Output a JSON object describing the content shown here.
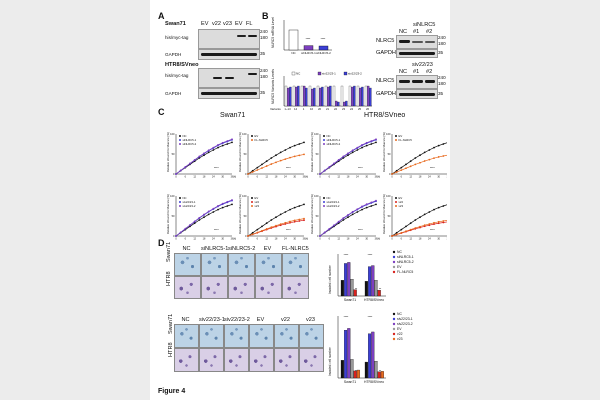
{
  "figure_label": "Figure 4",
  "panels": {
    "A": "A",
    "B": "B",
    "C": "C",
    "D": "D"
  },
  "panel_a": {
    "cell_line_1": "Swan71",
    "cell_line_2": "HTR8/SVneo",
    "lanes": [
      "EV",
      "v22",
      "v23",
      "EV",
      "FL"
    ],
    "row_labels": [
      "his/myc-tag",
      "GAPDH"
    ],
    "mw": [
      "240",
      "180",
      "35"
    ]
  },
  "panel_b": {
    "sinlrc5_title": "siNLRC5",
    "siv_title": "siv22/23",
    "lanes": [
      "NC",
      "#1",
      "#2"
    ],
    "row_labels": [
      "NLRC5",
      "GAPDH"
    ],
    "mw": [
      "240",
      "180",
      "35"
    ],
    "bar_ylabel": "NLRC5 mRNA Level",
    "bar_categories": [
      "NC",
      "siNLRC5-1",
      "siNLRC5-2"
    ],
    "bar_values": [
      1.0,
      0.22,
      0.2
    ],
    "bar_sig": [
      "****",
      "****"
    ],
    "variant_ylabel": "NLRC5 Variants Levels",
    "variant_legend": [
      "NC",
      "siv22/23-1",
      "siv22/23-2"
    ],
    "variant_xlabel": "Variants",
    "variant_categories": [
      "1~13",
      "14",
      "1",
      "16",
      "20",
      "21",
      "22",
      "23",
      "24",
      "25",
      "26"
    ],
    "variant_series": [
      {
        "name": "NC",
        "values": [
          1.0,
          1.0,
          1.0,
          1.0,
          1.0,
          1.0,
          1.0,
          1.0,
          1.0,
          1.0,
          1.0
        ]
      },
      {
        "name": "siv22/23-1",
        "values": [
          0.9,
          0.95,
          1.0,
          0.85,
          0.9,
          0.95,
          0.25,
          0.2,
          0.95,
          0.9,
          1.0
        ]
      },
      {
        "name": "siv22/23-2",
        "values": [
          0.95,
          1.0,
          0.9,
          0.9,
          0.95,
          1.0,
          0.2,
          0.25,
          1.0,
          0.95,
          0.9
        ]
      }
    ]
  },
  "panel_c": {
    "title_1": "Swan71",
    "title_2": "HTR8/SVneo",
    "ylabel": "Relative Wound Confluence (%)",
    "xlabel": "(h)",
    "legends": {
      "si": [
        "NC",
        "siNLRC5-1",
        "siNLRC5-2"
      ],
      "ev_fl": [
        "EV",
        "FL-NLRC5"
      ],
      "siv": [
        "NC",
        "siv22/23-1",
        "siv22/23-2"
      ],
      "ev_v": [
        "EV",
        "v22",
        "v23"
      ]
    },
    "sig": "****"
  },
  "panel_d": {
    "top_columns": [
      "NC",
      "siNLRC5-1",
      "siNLRC5-2",
      "EV",
      "FL-NLRC5"
    ],
    "bottom_columns": [
      "NC",
      "siv22/23-1",
      "siv22/23-2",
      "EV",
      "v22",
      "v23"
    ],
    "row_labels": [
      "Swan71",
      "HTR8"
    ],
    "ylabel": "Invaded cell number",
    "x_groups": [
      "Swan71",
      "HTR8/SVneo"
    ],
    "top_legend": [
      "NC",
      "siNLRC5-1",
      "siNLRC5-2",
      "EV",
      "FL-NLRC5"
    ],
    "bottom_legend": [
      "NC",
      "siv22/23-1",
      "siv22/23-2",
      "EV",
      "v22",
      "v23"
    ],
    "sig": [
      "****",
      "**"
    ]
  },
  "chart_data": [
    {
      "type": "bar",
      "title": "",
      "ylabel": "NLRC5 mRNA Level",
      "categories": [
        "NC",
        "siNLRC5-1",
        "siNLRC5-2"
      ],
      "values": [
        1.0,
        0.22,
        0.2
      ],
      "ylim": [
        0,
        1.5
      ]
    },
    {
      "type": "bar",
      "ylabel": "NLRC5 Variants Levels",
      "xlabel": "Variants",
      "categories": [
        "1~13",
        "14",
        "1",
        "16",
        "20",
        "21",
        "22",
        "23",
        "24",
        "25",
        "26"
      ],
      "series": [
        {
          "name": "NC",
          "values": [
            1.0,
            1.0,
            1.0,
            1.0,
            1.0,
            1.0,
            1.0,
            1.0,
            1.0,
            1.0,
            1.0
          ]
        },
        {
          "name": "siv22/23-1",
          "values": [
            0.9,
            0.95,
            1.0,
            0.85,
            0.9,
            0.95,
            0.25,
            0.2,
            0.95,
            0.9,
            1.0
          ]
        },
        {
          "name": "siv22/23-2",
          "values": [
            0.95,
            1.0,
            0.9,
            0.9,
            0.95,
            1.0,
            0.2,
            0.25,
            1.0,
            0.95,
            0.9
          ]
        }
      ],
      "ylim": [
        0,
        1.5
      ]
    },
    {
      "type": "line",
      "title": "Swan71",
      "ylabel": "Relative Wound Confluence (%)",
      "x": [
        0,
        3,
        6,
        9,
        12,
        15,
        18,
        21,
        24,
        27,
        30,
        33,
        36
      ],
      "series": [
        {
          "name": "NC",
          "values": [
            0,
            8,
            16,
            24,
            32,
            40,
            47,
            54,
            60,
            66,
            71,
            75,
            79
          ]
        },
        {
          "name": "siNLRC5-1",
          "values": [
            0,
            10,
            20,
            30,
            40,
            49,
            57,
            64,
            70,
            75,
            79,
            82,
            85
          ]
        },
        {
          "name": "siNLRC5-2",
          "values": [
            0,
            10,
            21,
            31,
            41,
            50,
            58,
            65,
            71,
            76,
            80,
            83,
            86
          ]
        }
      ],
      "ylim": [
        0,
        100
      ]
    },
    {
      "type": "bar",
      "ylabel": "Invaded cell number",
      "categories": [
        "Swan71",
        "HTR8/SVneo"
      ],
      "series": [
        {
          "name": "NC",
          "values": [
            300,
            280
          ]
        },
        {
          "name": "siNLRC5-1",
          "values": [
            620,
            560
          ]
        },
        {
          "name": "siNLRC5-2",
          "values": [
            640,
            580
          ]
        },
        {
          "name": "EV",
          "values": [
            320,
            300
          ]
        },
        {
          "name": "FL-NLRC5",
          "values": [
            120,
            110
          ]
        }
      ],
      "ylim": [
        0,
        800
      ]
    },
    {
      "type": "bar",
      "ylabel": "Invaded cell number",
      "categories": [
        "Swan71",
        "HTR8/SVneo"
      ],
      "series": [
        {
          "name": "NC",
          "values": [
            200,
            180
          ]
        },
        {
          "name": "siv22/23-1",
          "values": [
            540,
            500
          ]
        },
        {
          "name": "siv22/23-2",
          "values": [
            560,
            520
          ]
        },
        {
          "name": "EV",
          "values": [
            210,
            190
          ]
        },
        {
          "name": "v22",
          "values": [
            80,
            70
          ]
        },
        {
          "name": "v23",
          "values": [
            90,
            75
          ]
        }
      ],
      "ylim": [
        0,
        700
      ]
    }
  ],
  "colors": {
    "black": "#111111",
    "blue": "#3b3fd6",
    "purple": "#7d3fc0",
    "orange": "#e86a1f",
    "gray": "#777777",
    "red": "#d8221e"
  }
}
